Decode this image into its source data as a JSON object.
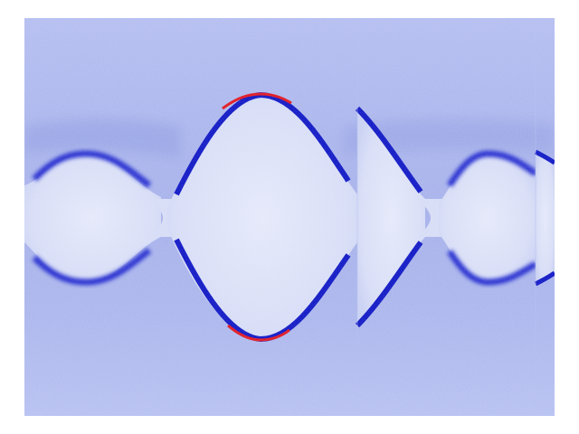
{
  "image": {
    "kind": "false-color intensity map",
    "colors": {
      "background": "#ffffff",
      "field_light": "#b8c1f2",
      "field_mid": "#a8b3ec",
      "shadow_band": "#8b97e0",
      "interior": "#dde2f7",
      "edge_dark": "#0a12c8",
      "edge_peak": "#e0141e"
    }
  }
}
